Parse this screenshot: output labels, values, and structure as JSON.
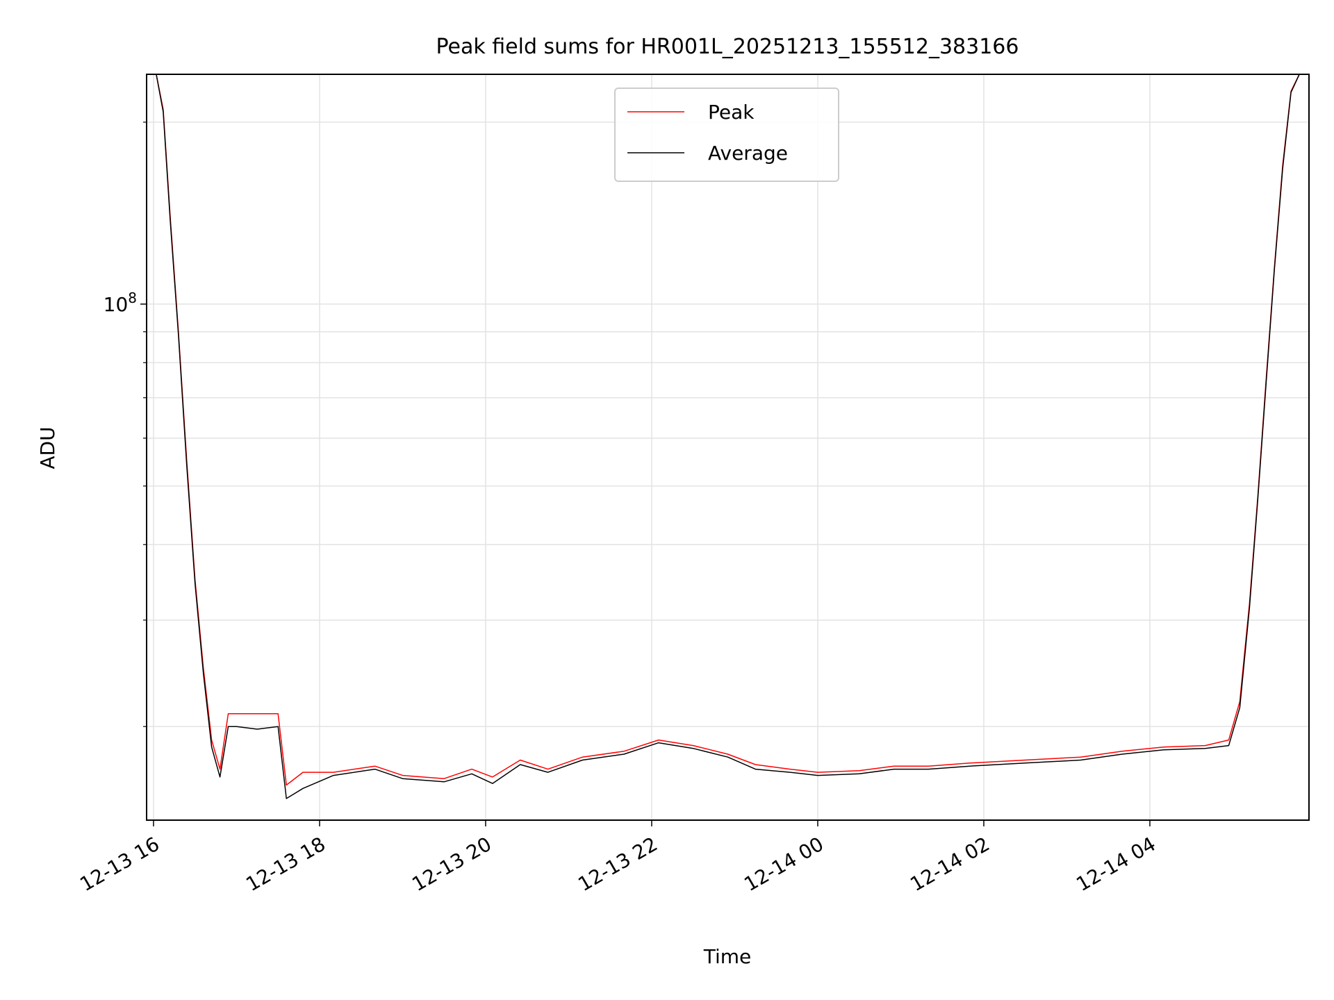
{
  "chart_data": {
    "type": "line",
    "title": "Peak field sums for HR001L_20251213_155512_383166",
    "xlabel": "Time",
    "ylabel": "ADU",
    "y_scale": "log",
    "ylim": [
      14000000,
      240000000
    ],
    "xlim": [
      "2025-12-13 15:55",
      "2025-12-14 05:55"
    ],
    "grid": true,
    "legend_position": "top-center",
    "x_tick_labels": [
      "12-13 16",
      "12-13 18",
      "12-13 20",
      "12-13 22",
      "12-14 00",
      "12-14 02",
      "12-14 04"
    ],
    "x_ticks": [
      "2025-12-13 16:00",
      "2025-12-13 18:00",
      "2025-12-13 20:00",
      "2025-12-13 22:00",
      "2025-12-14 00:00",
      "2025-12-14 02:00",
      "2025-12-14 04:00"
    ],
    "y_tick_labels": [
      {
        "base": "10",
        "exp": "8",
        "value": 100000000
      }
    ],
    "y_minor_ticks": [
      20000000,
      30000000,
      40000000,
      50000000,
      60000000,
      70000000,
      80000000,
      90000000,
      200000000
    ],
    "series": [
      {
        "name": "Peak",
        "color": "#ff0000",
        "x": [
          "2025-12-13 16:02",
          "2025-12-13 16:07",
          "2025-12-13 16:12",
          "2025-12-13 16:18",
          "2025-12-13 16:24",
          "2025-12-13 16:30",
          "2025-12-13 16:36",
          "2025-12-13 16:42",
          "2025-12-13 16:48",
          "2025-12-13 16:54",
          "2025-12-13 17:00",
          "2025-12-13 17:15",
          "2025-12-13 17:30",
          "2025-12-13 17:36",
          "2025-12-13 17:48",
          "2025-12-13 18:10",
          "2025-12-13 18:40",
          "2025-12-13 19:00",
          "2025-12-13 19:30",
          "2025-12-13 19:50",
          "2025-12-13 20:05",
          "2025-12-13 20:25",
          "2025-12-13 20:45",
          "2025-12-13 21:10",
          "2025-12-13 21:40",
          "2025-12-13 22:05",
          "2025-12-13 22:30",
          "2025-12-13 22:55",
          "2025-12-13 23:15",
          "2025-12-13 23:40",
          "2025-12-14 00:00",
          "2025-12-14 00:30",
          "2025-12-14 00:55",
          "2025-12-14 01:20",
          "2025-12-14 01:50",
          "2025-12-14 02:30",
          "2025-12-14 03:10",
          "2025-12-14 03:40",
          "2025-12-14 04:10",
          "2025-12-14 04:40",
          "2025-12-14 04:57",
          "2025-12-14 05:05",
          "2025-12-14 05:12",
          "2025-12-14 05:18",
          "2025-12-14 05:24",
          "2025-12-14 05:30",
          "2025-12-14 05:36",
          "2025-12-14 05:42",
          "2025-12-14 05:48"
        ],
        "y": [
          240000000,
          210000000,
          140000000,
          90000000,
          55000000,
          35000000,
          25000000,
          19000000,
          17000000,
          21000000,
          21000000,
          21000000,
          21000000,
          16000000,
          16800000,
          16800000,
          17200000,
          16600000,
          16400000,
          17000000,
          16500000,
          17600000,
          17000000,
          17800000,
          18200000,
          19000000,
          18600000,
          18000000,
          17300000,
          17000000,
          16800000,
          16900000,
          17200000,
          17200000,
          17400000,
          17600000,
          17800000,
          18200000,
          18500000,
          18600000,
          19000000,
          22000000,
          32000000,
          48000000,
          75000000,
          115000000,
          170000000,
          225000000,
          240000000
        ]
      },
      {
        "name": "Average",
        "color": "#000000",
        "x": [
          "2025-12-13 16:02",
          "2025-12-13 16:07",
          "2025-12-13 16:12",
          "2025-12-13 16:18",
          "2025-12-13 16:24",
          "2025-12-13 16:30",
          "2025-12-13 16:36",
          "2025-12-13 16:42",
          "2025-12-13 16:48",
          "2025-12-13 16:54",
          "2025-12-13 17:00",
          "2025-12-13 17:15",
          "2025-12-13 17:30",
          "2025-12-13 17:36",
          "2025-12-13 17:48",
          "2025-12-13 18:10",
          "2025-12-13 18:40",
          "2025-12-13 19:00",
          "2025-12-13 19:30",
          "2025-12-13 19:50",
          "2025-12-13 20:05",
          "2025-12-13 20:25",
          "2025-12-13 20:45",
          "2025-12-13 21:10",
          "2025-12-13 21:40",
          "2025-12-13 22:05",
          "2025-12-13 22:30",
          "2025-12-13 22:55",
          "2025-12-13 23:15",
          "2025-12-13 23:40",
          "2025-12-14 00:00",
          "2025-12-14 00:30",
          "2025-12-14 00:55",
          "2025-12-14 01:20",
          "2025-12-14 01:50",
          "2025-12-14 02:30",
          "2025-12-14 03:10",
          "2025-12-14 03:40",
          "2025-12-14 04:10",
          "2025-12-14 04:40",
          "2025-12-14 04:57",
          "2025-12-14 05:05",
          "2025-12-14 05:12",
          "2025-12-14 05:18",
          "2025-12-14 05:24",
          "2025-12-14 05:30",
          "2025-12-14 05:36",
          "2025-12-14 05:42",
          "2025-12-14 05:48"
        ],
        "y": [
          240000000,
          208000000,
          138000000,
          89000000,
          54000000,
          34500000,
          24500000,
          18500000,
          16500000,
          20000000,
          20000000,
          19800000,
          20000000,
          15200000,
          15800000,
          16600000,
          17000000,
          16400000,
          16200000,
          16700000,
          16100000,
          17300000,
          16800000,
          17600000,
          18000000,
          18800000,
          18400000,
          17800000,
          17000000,
          16800000,
          16600000,
          16700000,
          17000000,
          17000000,
          17200000,
          17400000,
          17600000,
          18000000,
          18300000,
          18400000,
          18600000,
          21500000,
          31500000,
          47500000,
          74000000,
          114000000,
          168000000,
          224000000,
          240000000
        ]
      }
    ]
  }
}
